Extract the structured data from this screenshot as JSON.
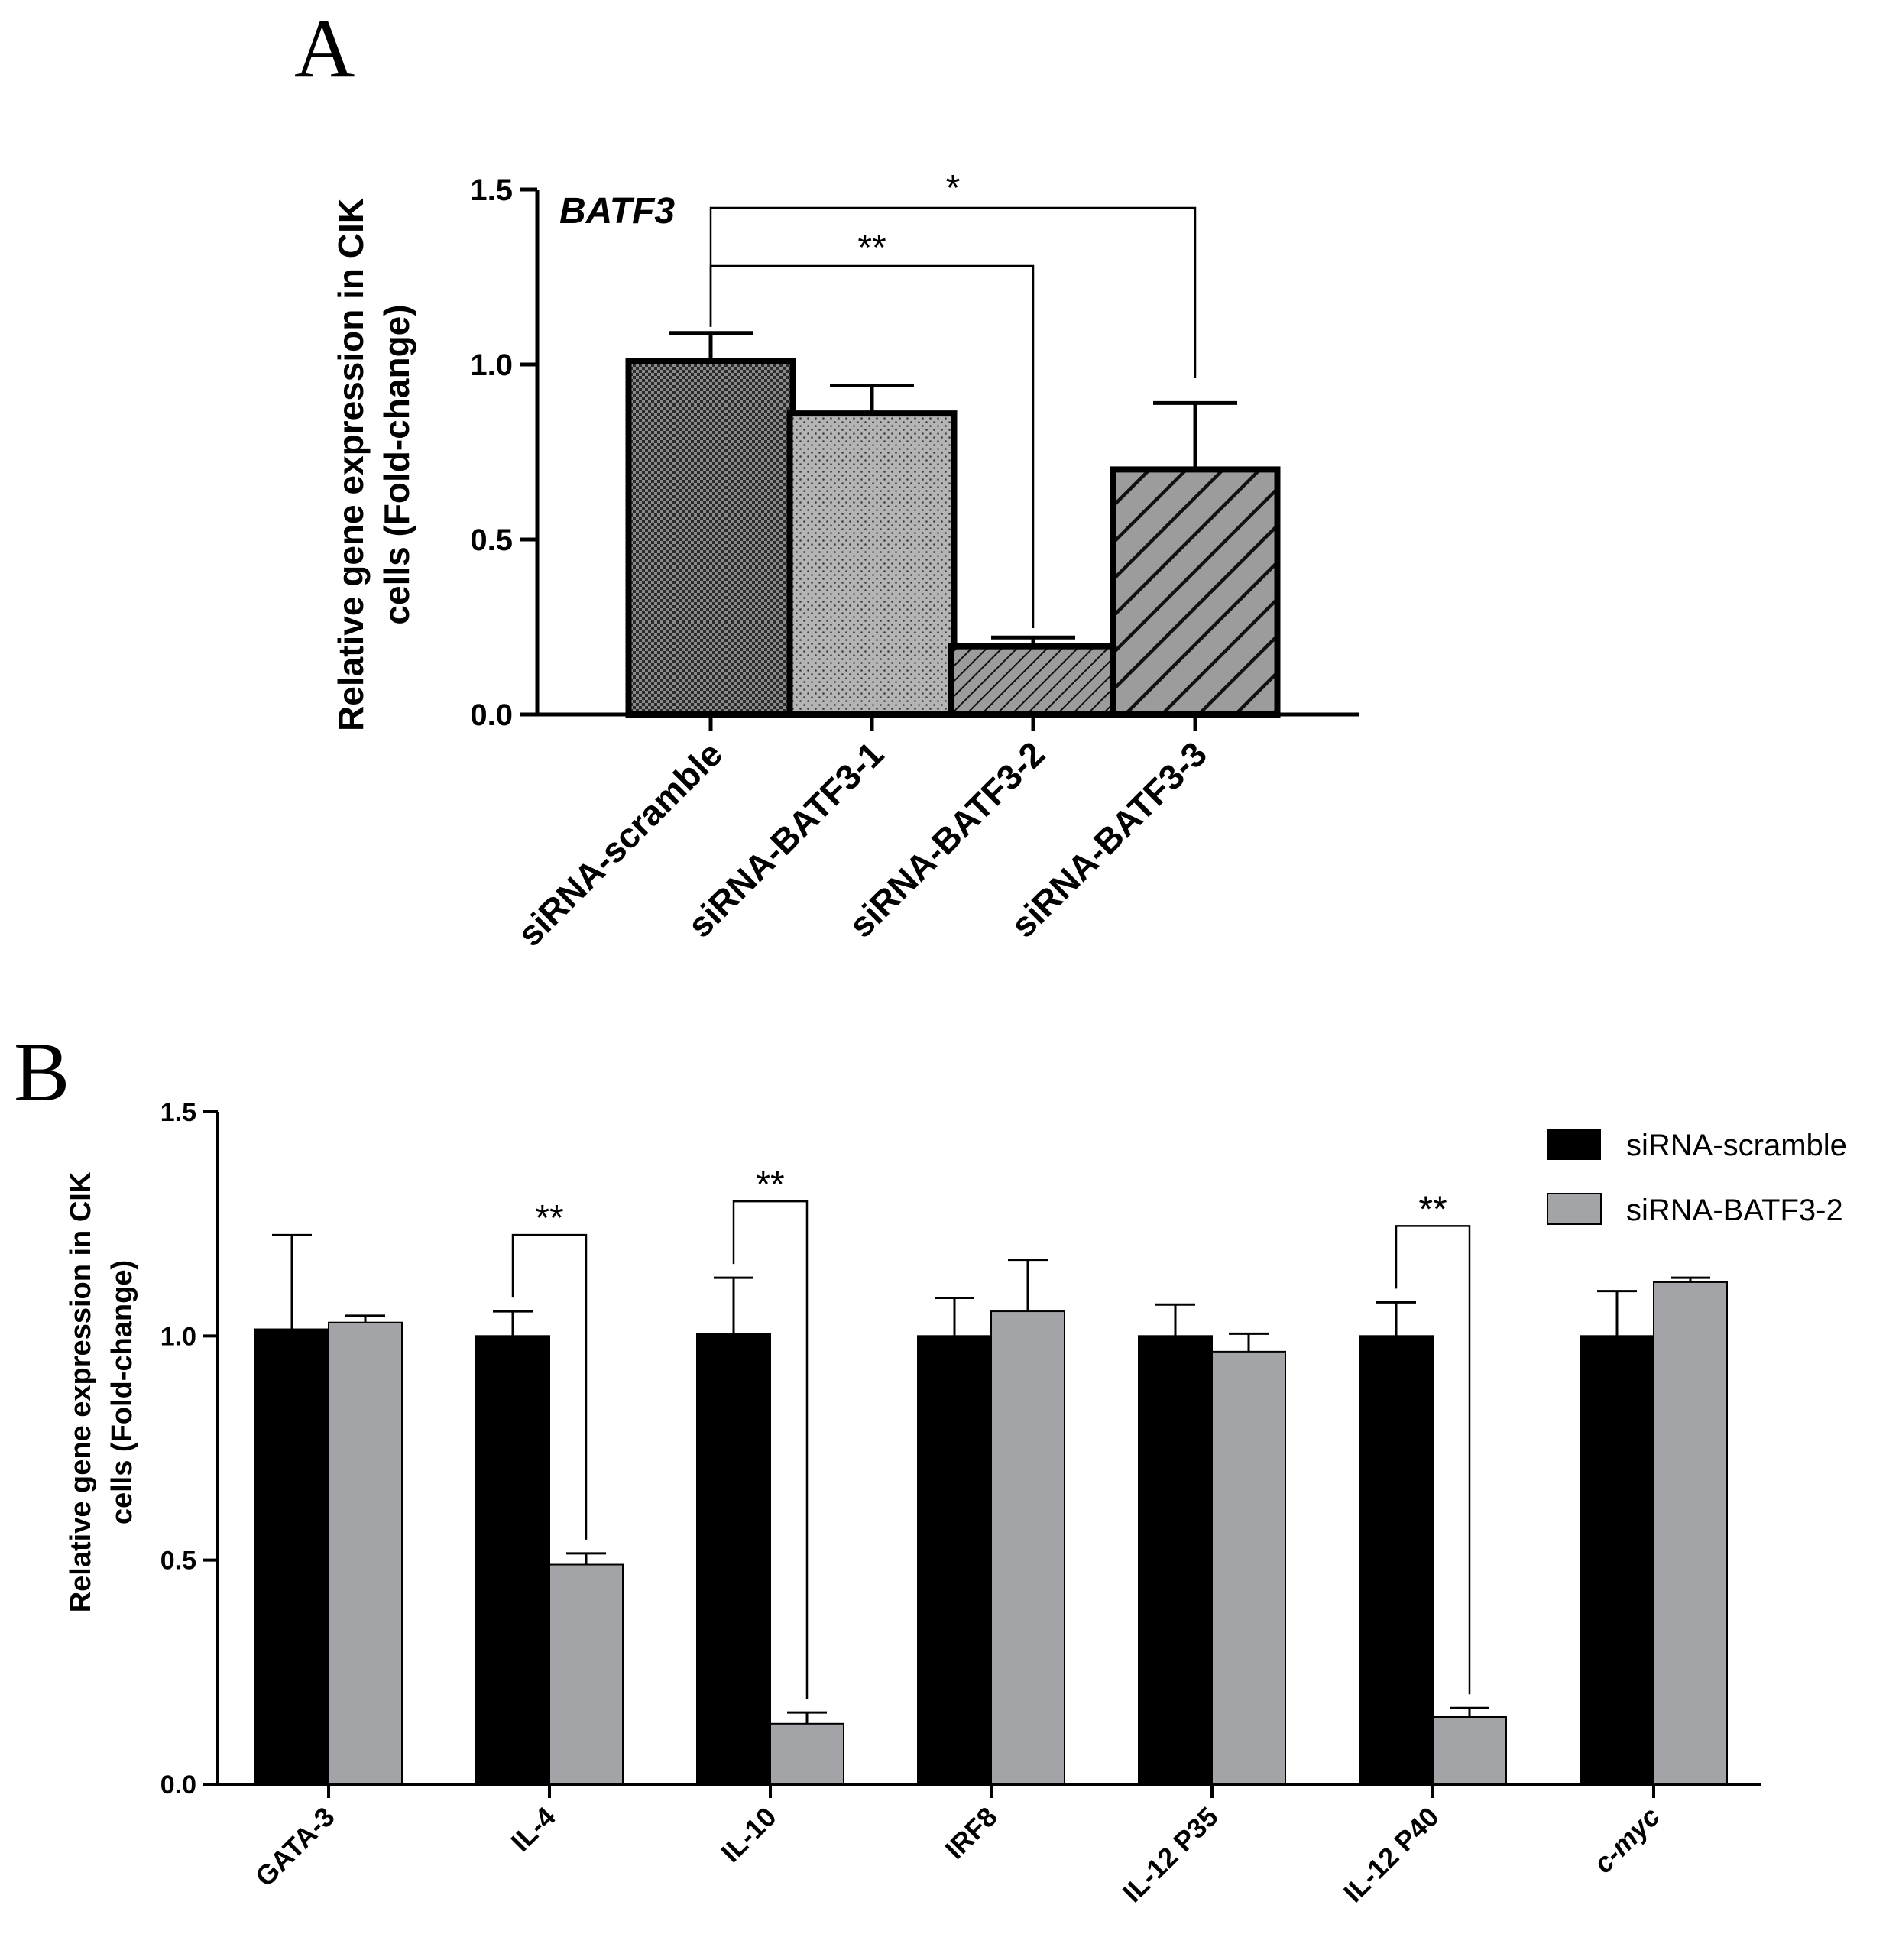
{
  "chart_data": [
    {
      "panel": "A",
      "type": "bar",
      "gene_label": "BATF3",
      "ylabel_lines": [
        "Relative gene expression in CIK",
        "cells (Fold-change)"
      ],
      "ylim": [
        0,
        1.5
      ],
      "yticks": [
        "0.0",
        "0.5",
        "1.0",
        "1.5"
      ],
      "categories": [
        "siRNA-scramble",
        "siRNA-BATF3-1",
        "siRNA-BATF3-2",
        "siRNA-BATF3-3"
      ],
      "values": [
        1.01,
        0.86,
        0.195,
        0.7
      ],
      "errors": [
        0.08,
        0.08,
        0.025,
        0.19
      ],
      "patterns": [
        "checker",
        "dots",
        "fine-hatch",
        "wide-hatch"
      ],
      "comparisons": [
        {
          "from": "siRNA-scramble",
          "to": "siRNA-BATF3-2",
          "label": "**"
        },
        {
          "from": "siRNA-scramble",
          "to": "siRNA-BATF3-3",
          "label": "*"
        }
      ]
    },
    {
      "panel": "B",
      "type": "bar",
      "ylabel_lines": [
        "Relative gene expression in CIK",
        "cells (Fold-change)"
      ],
      "ylim": [
        0,
        1.5
      ],
      "yticks": [
        "0.0",
        "0.5",
        "1.0",
        "1.5"
      ],
      "categories": [
        "GATA-3",
        "IL-4",
        "IL-10",
        "IRF8",
        "IL-12 P35",
        "IL-12 P40",
        "c-myc"
      ],
      "italic_categories": [
        "c-myc"
      ],
      "legend_position": "top-right",
      "series": [
        {
          "name": "siRNA-scramble",
          "color": "#000000",
          "values": [
            1.015,
            1.0,
            1.005,
            1.0,
            1.0,
            1.0,
            1.0
          ],
          "errors": [
            0.21,
            0.055,
            0.125,
            0.085,
            0.07,
            0.075,
            0.1
          ]
        },
        {
          "name": "siRNA-BATF3-2",
          "color": "#a3a4a8",
          "values": [
            1.03,
            0.49,
            0.135,
            1.055,
            0.965,
            0.15,
            1.12
          ],
          "errors": [
            0.015,
            0.025,
            0.025,
            0.115,
            0.04,
            0.02,
            0.01
          ]
        }
      ],
      "comparisons": [
        {
          "category": "IL-4",
          "label": "**"
        },
        {
          "category": "IL-10",
          "label": "**"
        },
        {
          "category": "IL-12 P40",
          "label": "**"
        }
      ]
    }
  ],
  "panel_letters": {
    "a": "A",
    "b": "B"
  }
}
